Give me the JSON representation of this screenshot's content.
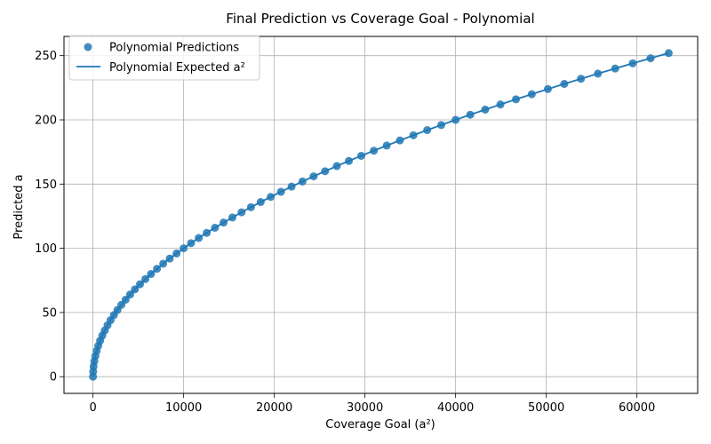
{
  "chart_data": {
    "type": "scatter",
    "title": "Final Prediction vs Coverage Goal - Polynomial",
    "xlabel": "Coverage Goal (a²)",
    "ylabel": "Predicted a",
    "xlim": [
      -3200,
      66700
    ],
    "ylim": [
      -13,
      265
    ],
    "xticks": [
      0,
      10000,
      20000,
      30000,
      40000,
      50000,
      60000
    ],
    "yticks": [
      0,
      50,
      100,
      150,
      200,
      250
    ],
    "grid": true,
    "legend_position": "top-left",
    "colors": {
      "points": "#1f77b4",
      "line": "#1f77b4",
      "grid": "#b0b0b0"
    },
    "series": [
      {
        "name": "Polynomial Predictions",
        "kind": "scatter",
        "a_values": [
          0,
          4,
          8,
          12,
          16,
          20,
          24,
          28,
          32,
          36,
          40,
          44,
          48,
          52,
          56,
          60,
          64,
          68,
          72,
          76,
          80,
          84,
          88,
          92,
          96,
          100,
          104,
          108,
          112,
          116,
          120,
          124,
          128,
          132,
          136,
          140,
          144,
          148,
          152,
          156,
          160,
          164,
          168,
          172,
          176,
          180,
          184,
          188,
          192,
          196,
          200,
          204,
          208,
          212,
          216,
          220,
          224,
          228,
          232,
          236,
          240,
          244,
          248,
          252
        ]
      },
      {
        "name": "Polynomial Expected a²",
        "kind": "line",
        "relation": "y = sqrt(x)",
        "x_range": [
          0,
          63504
        ]
      }
    ]
  }
}
